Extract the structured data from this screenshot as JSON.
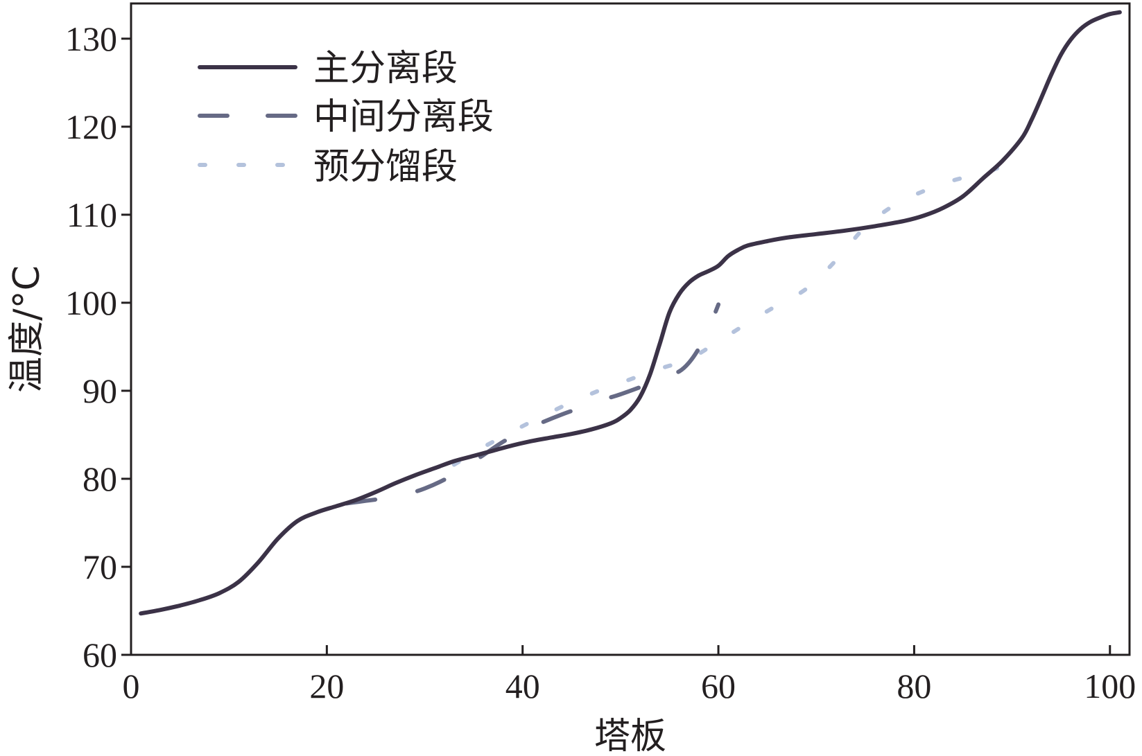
{
  "chart_data": {
    "type": "line",
    "xlabel": "塔板",
    "ylabel": "温度/°C",
    "xlim": [
      0,
      102
    ],
    "ylim": [
      60,
      134
    ],
    "xticks": [
      0,
      20,
      40,
      60,
      80,
      100
    ],
    "yticks": [
      60,
      70,
      80,
      90,
      100,
      110,
      120,
      130
    ],
    "grid": false,
    "legend_position": "top-left",
    "series": [
      {
        "name": "主分离段",
        "style": "solid",
        "color": "#3b3247",
        "x": [
          1,
          3,
          5,
          7,
          9,
          11,
          13,
          15,
          17,
          19,
          21,
          23,
          25,
          27,
          29,
          31,
          33,
          35,
          37,
          39,
          41,
          43,
          45,
          47,
          49,
          50,
          51,
          52,
          53,
          54,
          55,
          56,
          57,
          58,
          59,
          60,
          61,
          62,
          63,
          65,
          67,
          70,
          73,
          76,
          79,
          81,
          83,
          85,
          87,
          89,
          91,
          92,
          93,
          94,
          95,
          96,
          97,
          98,
          99,
          100,
          101
        ],
        "y": [
          64.7,
          65.1,
          65.6,
          66.2,
          67.0,
          68.3,
          70.5,
          73.2,
          75.2,
          76.2,
          76.9,
          77.6,
          78.5,
          79.5,
          80.4,
          81.2,
          82.0,
          82.6,
          83.2,
          83.8,
          84.3,
          84.7,
          85.1,
          85.6,
          86.3,
          86.9,
          87.8,
          89.3,
          91.8,
          95.3,
          98.9,
          101.0,
          102.3,
          103.1,
          103.6,
          104.2,
          105.3,
          106.0,
          106.5,
          107.0,
          107.4,
          107.8,
          108.2,
          108.7,
          109.3,
          109.9,
          110.8,
          112.1,
          114.1,
          116.1,
          118.7,
          120.8,
          123.3,
          125.9,
          128.2,
          129.9,
          131.1,
          131.9,
          132.4,
          132.8,
          133.0
        ]
      },
      {
        "name": "中间分离段",
        "style": "dashed",
        "color": "#666a85",
        "x": [
          22,
          24,
          26,
          28,
          30,
          32,
          34,
          36,
          38,
          40,
          42,
          44,
          46,
          48,
          50,
          52,
          53,
          54,
          55,
          56,
          57,
          58,
          59,
          60
        ],
        "y": [
          77.2,
          77.5,
          77.8,
          78.2,
          78.9,
          79.9,
          81.2,
          82.7,
          84.2,
          85.4,
          86.4,
          87.3,
          88.1,
          88.9,
          89.6,
          90.4,
          90.8,
          91.4,
          91.9,
          92.2,
          93.2,
          94.8,
          97.0,
          99.8
        ]
      },
      {
        "name": "预分馏段",
        "style": "dotted",
        "color": "#b4c2dc",
        "x": [
          33,
          36,
          39,
          42,
          45,
          48,
          51,
          54,
          57,
          60,
          63,
          66,
          69,
          72,
          75,
          78,
          81,
          84,
          87,
          89
        ],
        "y": [
          81.6,
          83.6,
          85.4,
          87.1,
          88.7,
          90.1,
          91.3,
          92.5,
          93.6,
          95.6,
          97.7,
          99.7,
          101.6,
          104.8,
          108.6,
          111.1,
          112.7,
          113.9,
          114.7,
          115.5
        ]
      }
    ]
  }
}
